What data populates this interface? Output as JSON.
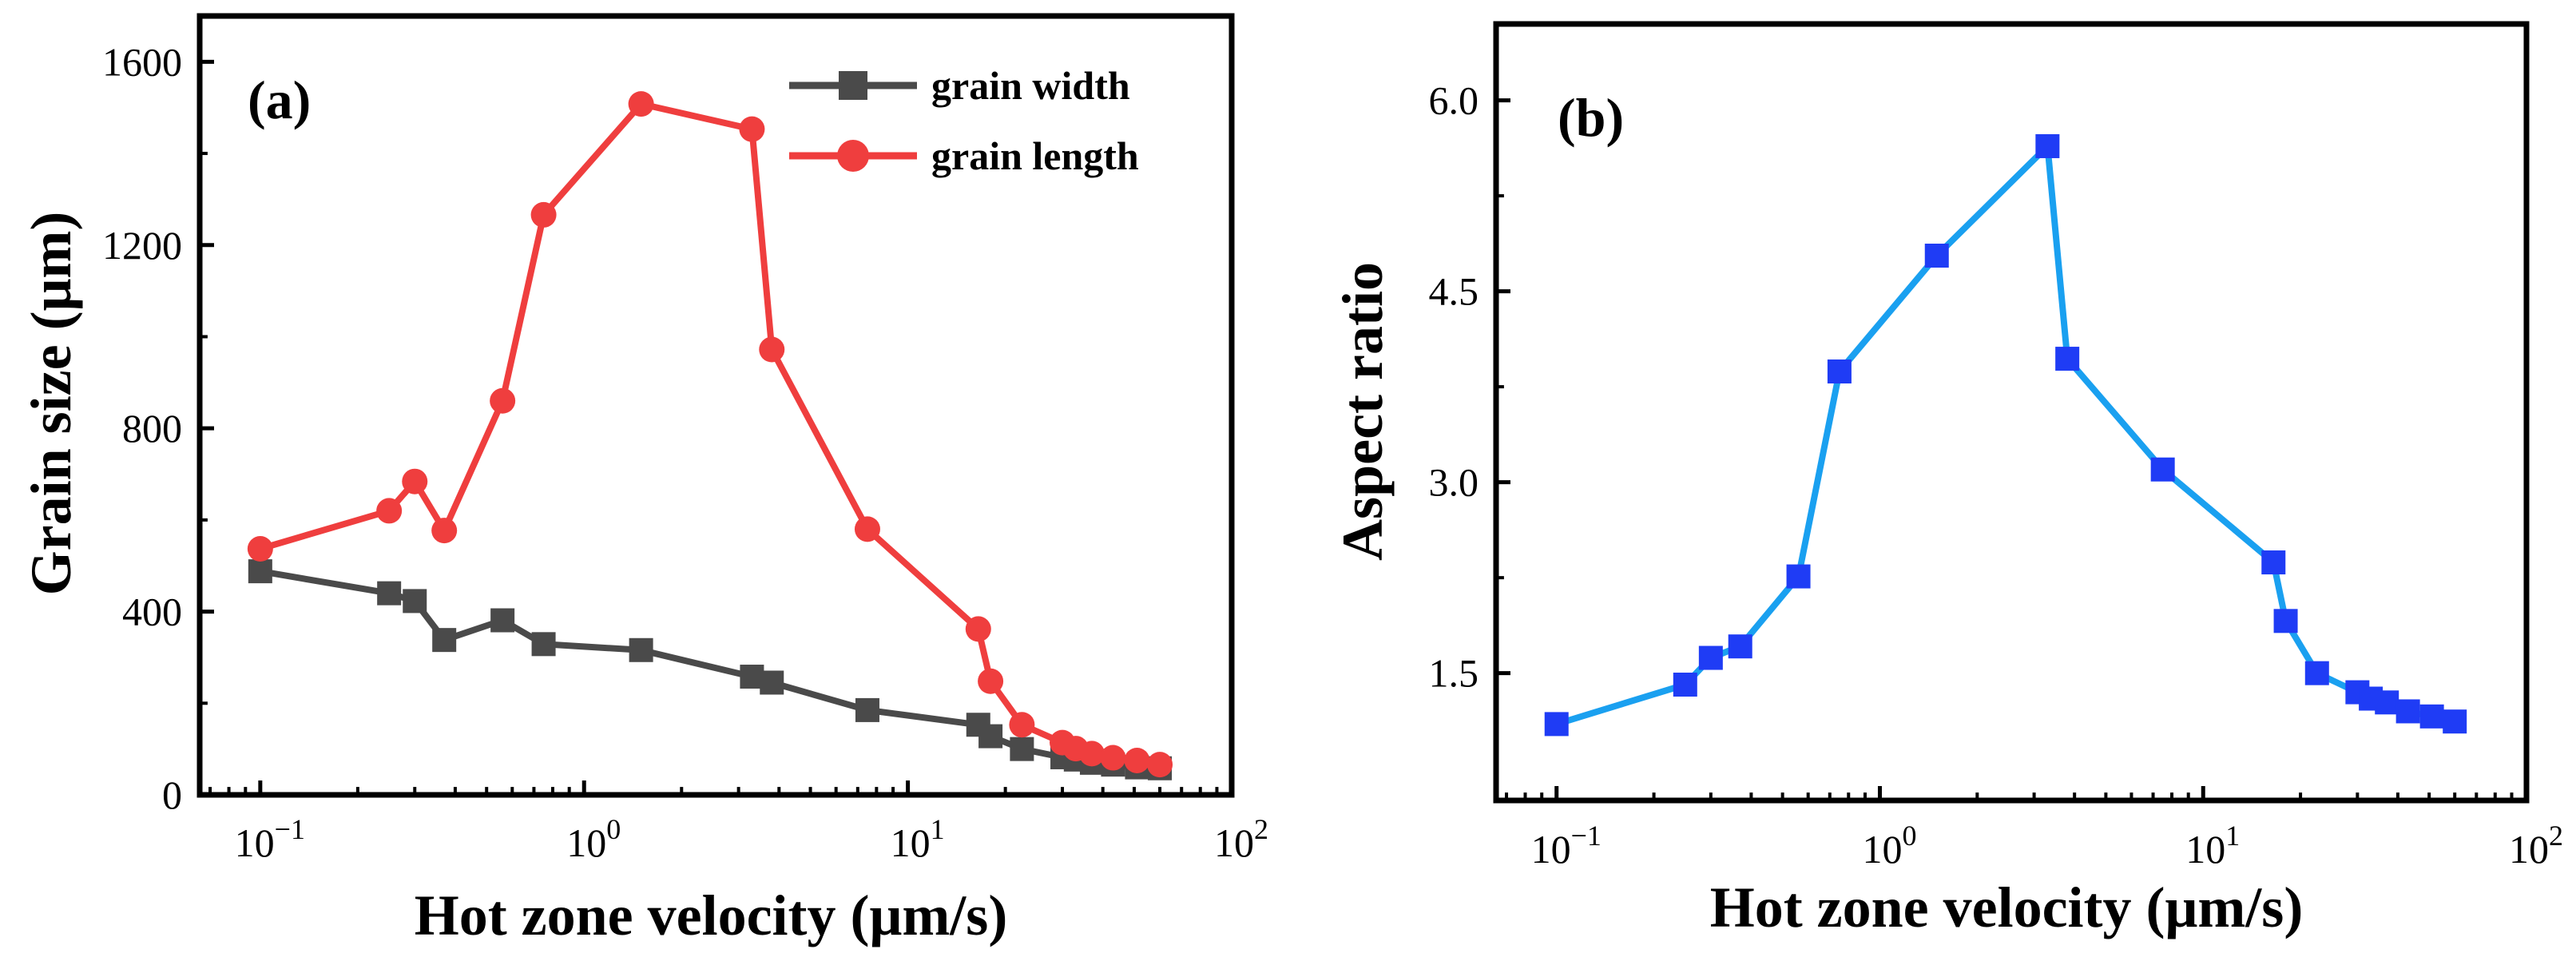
{
  "chart_data": [
    {
      "type": "line",
      "panel_label": "(a)",
      "xlabel": "Hot zone velocity (μm/s)",
      "ylabel": "Grain size (μm)",
      "xscale": "log",
      "xlim": [
        0.065,
        100
      ],
      "ylim": [
        0,
        1700
      ],
      "yticks": [
        0,
        400,
        800,
        1200,
        1600
      ],
      "ytick_labels": [
        "0",
        "400",
        "800",
        "1200",
        "1600"
      ],
      "xticks": [
        0.1,
        1,
        10,
        100
      ],
      "xtick_labels": [
        {
          "base": "10",
          "exp": "−1"
        },
        {
          "base": "10",
          "exp": "0"
        },
        {
          "base": "10",
          "exp": "1"
        },
        {
          "base": "10",
          "exp": "2"
        }
      ],
      "legend_position": "top-right",
      "series": [
        {
          "name": "grain width",
          "color": "#4a4a4a",
          "marker": "square",
          "x": [
            0.1,
            0.25,
            0.3,
            0.37,
            0.56,
            0.75,
            1.5,
            3.3,
            3.8,
            7.5,
            16.5,
            18,
            22.5,
            30,
            33,
            37,
            43,
            51,
            60
          ],
          "y": [
            488,
            440,
            423,
            338,
            381,
            329,
            316,
            258,
            245,
            185,
            153,
            128,
            100,
            82,
            77,
            70,
            66,
            60,
            58
          ]
        },
        {
          "name": "grain length",
          "color": "#ef3e3e",
          "marker": "circle",
          "x": [
            0.1,
            0.25,
            0.3,
            0.37,
            0.56,
            0.75,
            1.5,
            3.3,
            3.8,
            7.5,
            16.5,
            18,
            22.5,
            30,
            33,
            37,
            43,
            51,
            60
          ],
          "y": [
            537,
            620,
            684,
            577,
            860,
            1266,
            1508,
            1453,
            972,
            580,
            362,
            248,
            153,
            114,
            101,
            90,
            81,
            75,
            66
          ]
        }
      ]
    },
    {
      "type": "line",
      "panel_label": "(b)",
      "xlabel": "Hot zone velocity (μm/s)",
      "ylabel": "Aspect ratio",
      "xscale": "log",
      "xlim": [
        0.065,
        100
      ],
      "ylim": [
        0.5,
        6.6
      ],
      "yticks": [
        1.5,
        3.0,
        4.5,
        6.0
      ],
      "ytick_labels": [
        "1.5",
        "3.0",
        "4.5",
        "6.0"
      ],
      "xticks": [
        0.1,
        1,
        10,
        100
      ],
      "xtick_labels": [
        {
          "base": "10",
          "exp": "−1"
        },
        {
          "base": "10",
          "exp": "0"
        },
        {
          "base": "10",
          "exp": "1"
        },
        {
          "base": "10",
          "exp": "2"
        }
      ],
      "series": [
        {
          "name": "aspect ratio",
          "color": "#1aa0f0",
          "marker_color": "#1f3cf5",
          "marker": "square",
          "x": [
            0.1,
            0.25,
            0.3,
            0.37,
            0.56,
            0.75,
            1.5,
            3.3,
            3.8,
            7.5,
            16.5,
            18,
            22.5,
            30,
            33,
            37,
            43,
            51,
            60
          ],
          "y": [
            1.1,
            1.41,
            1.62,
            1.71,
            2.26,
            3.87,
            4.78,
            5.64,
            3.97,
            3.1,
            2.37,
            1.91,
            1.5,
            1.35,
            1.3,
            1.27,
            1.2,
            1.16,
            1.12
          ]
        }
      ]
    }
  ]
}
